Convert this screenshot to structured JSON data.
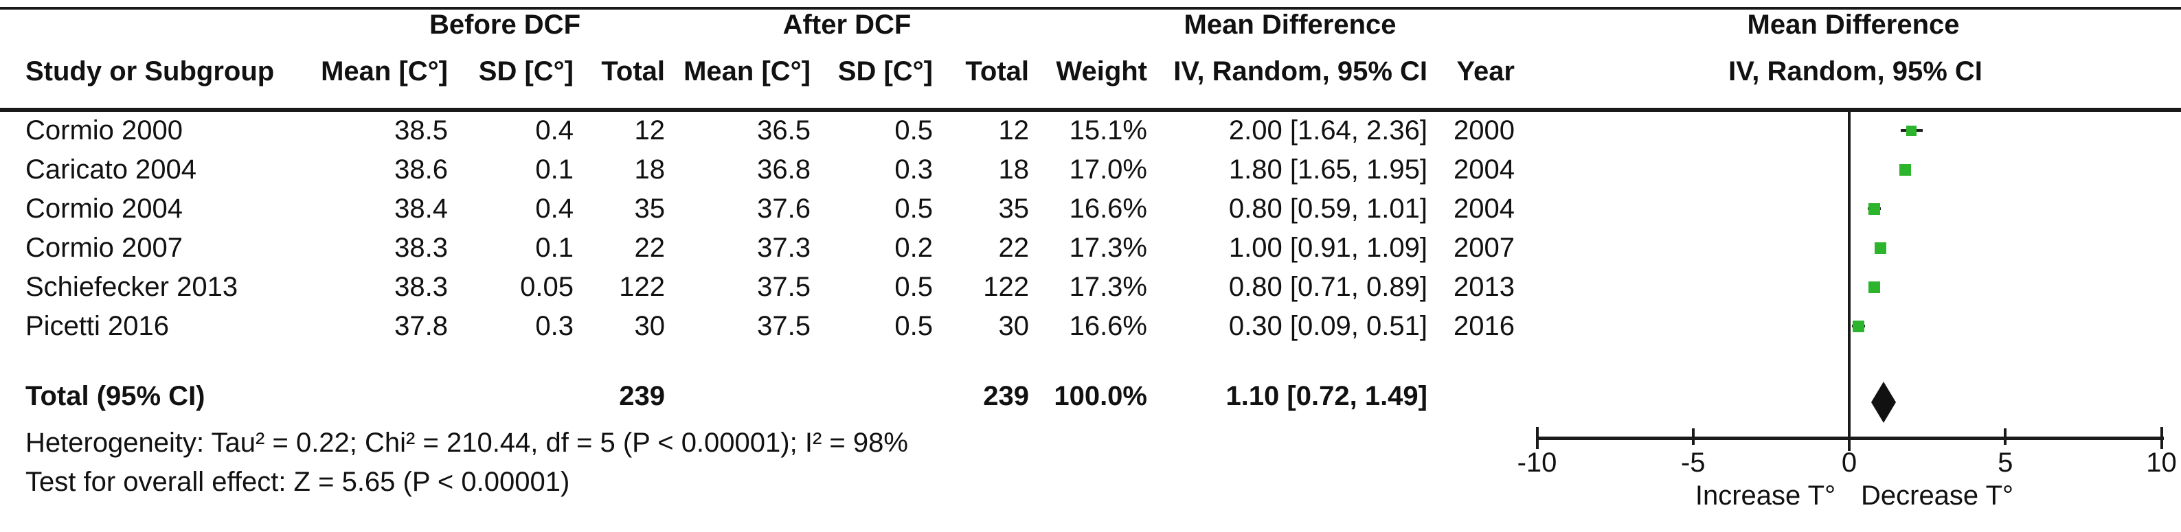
{
  "table": {
    "group_headers": {
      "before": "Before DCF",
      "after": "After DCF",
      "md_left": "Mean Difference",
      "md_right": "Mean Difference"
    },
    "columns": {
      "study": "Study or Subgroup",
      "mean": "Mean [C°]",
      "sd": "SD [C°]",
      "total": "Total",
      "weight": "Weight",
      "iv_random": "IV, Random, 95% CI",
      "year": "Year"
    },
    "rows": [
      {
        "study": "Cormio 2000",
        "mean1": "38.5",
        "sd1": "0.4",
        "total1": "12",
        "mean2": "36.5",
        "sd2": "0.5",
        "total2": "12",
        "weight": "15.1%",
        "ci": "2.00 [1.64, 2.36]",
        "year": "2000"
      },
      {
        "study": "Caricato 2004",
        "mean1": "38.6",
        "sd1": "0.1",
        "total1": "18",
        "mean2": "36.8",
        "sd2": "0.3",
        "total2": "18",
        "weight": "17.0%",
        "ci": "1.80 [1.65, 1.95]",
        "year": "2004"
      },
      {
        "study": "Cormio 2004",
        "mean1": "38.4",
        "sd1": "0.4",
        "total1": "35",
        "mean2": "37.6",
        "sd2": "0.5",
        "total2": "35",
        "weight": "16.6%",
        "ci": "0.80 [0.59, 1.01]",
        "year": "2004"
      },
      {
        "study": "Cormio 2007",
        "mean1": "38.3",
        "sd1": "0.1",
        "total1": "22",
        "mean2": "37.3",
        "sd2": "0.2",
        "total2": "22",
        "weight": "17.3%",
        "ci": "1.00 [0.91, 1.09]",
        "year": "2007"
      },
      {
        "study": "Schiefecker 2013",
        "mean1": "38.3",
        "sd1": "0.05",
        "total1": "122",
        "mean2": "37.5",
        "sd2": "0.5",
        "total2": "122",
        "weight": "17.3%",
        "ci": "0.80 [0.71, 0.89]",
        "year": "2013"
      },
      {
        "study": "Picetti 2016",
        "mean1": "37.8",
        "sd1": "0.3",
        "total1": "30",
        "mean2": "37.5",
        "sd2": "0.5",
        "total2": "30",
        "weight": "16.6%",
        "ci": "0.30 [0.09, 0.51]",
        "year": "2016"
      }
    ],
    "total_row": {
      "label": "Total (95% CI)",
      "total1": "239",
      "total2": "239",
      "weight": "100.0%",
      "ci": "1.10 [0.72, 1.49]"
    },
    "footer": {
      "heterogeneity": "Heterogeneity: Tau² = 0.22; Chi² = 210.44, df = 5 (P < 0.00001); I² = 98%",
      "overall_effect": "Test for overall effect: Z = 5.65 (P < 0.00001)"
    }
  },
  "chart_data": {
    "type": "scatter",
    "subtype": "forest-plot",
    "title": "Mean Difference",
    "subtitle": "IV, Random, 95% CI",
    "xlim": [
      -10,
      10
    ],
    "x_ticks": [
      -10,
      -5,
      0,
      5,
      10
    ],
    "x_tick_labels": [
      "-10",
      "-5",
      "0",
      "5",
      "10"
    ],
    "axis_annotation_left": "Increase T°",
    "axis_annotation_right": "Decrease T°",
    "grid": false,
    "marker_color": "#2cb52c",
    "diamond_color": "#111111",
    "studies": [
      {
        "name": "Cormio 2000",
        "year": 2000,
        "mean_difference": 2.0,
        "ci_95": [
          1.64,
          2.36
        ],
        "weight_pct": 15.1
      },
      {
        "name": "Caricato 2004",
        "year": 2004,
        "mean_difference": 1.8,
        "ci_95": [
          1.65,
          1.95
        ],
        "weight_pct": 17.0
      },
      {
        "name": "Cormio 2004",
        "year": 2004,
        "mean_difference": 0.8,
        "ci_95": [
          0.59,
          1.01
        ],
        "weight_pct": 16.6
      },
      {
        "name": "Cormio 2007",
        "year": 2007,
        "mean_difference": 1.0,
        "ci_95": [
          0.91,
          1.09
        ],
        "weight_pct": 17.3
      },
      {
        "name": "Schiefecker 2013",
        "year": 2013,
        "mean_difference": 0.8,
        "ci_95": [
          0.71,
          0.89
        ],
        "weight_pct": 17.3
      },
      {
        "name": "Picetti 2016",
        "year": 2016,
        "mean_difference": 0.3,
        "ci_95": [
          0.09,
          0.51
        ],
        "weight_pct": 16.6
      }
    ],
    "total": {
      "name": "Total (95% CI)",
      "mean_difference": 1.1,
      "ci_95": [
        0.72,
        1.49
      ],
      "weight_pct": 100.0
    }
  }
}
